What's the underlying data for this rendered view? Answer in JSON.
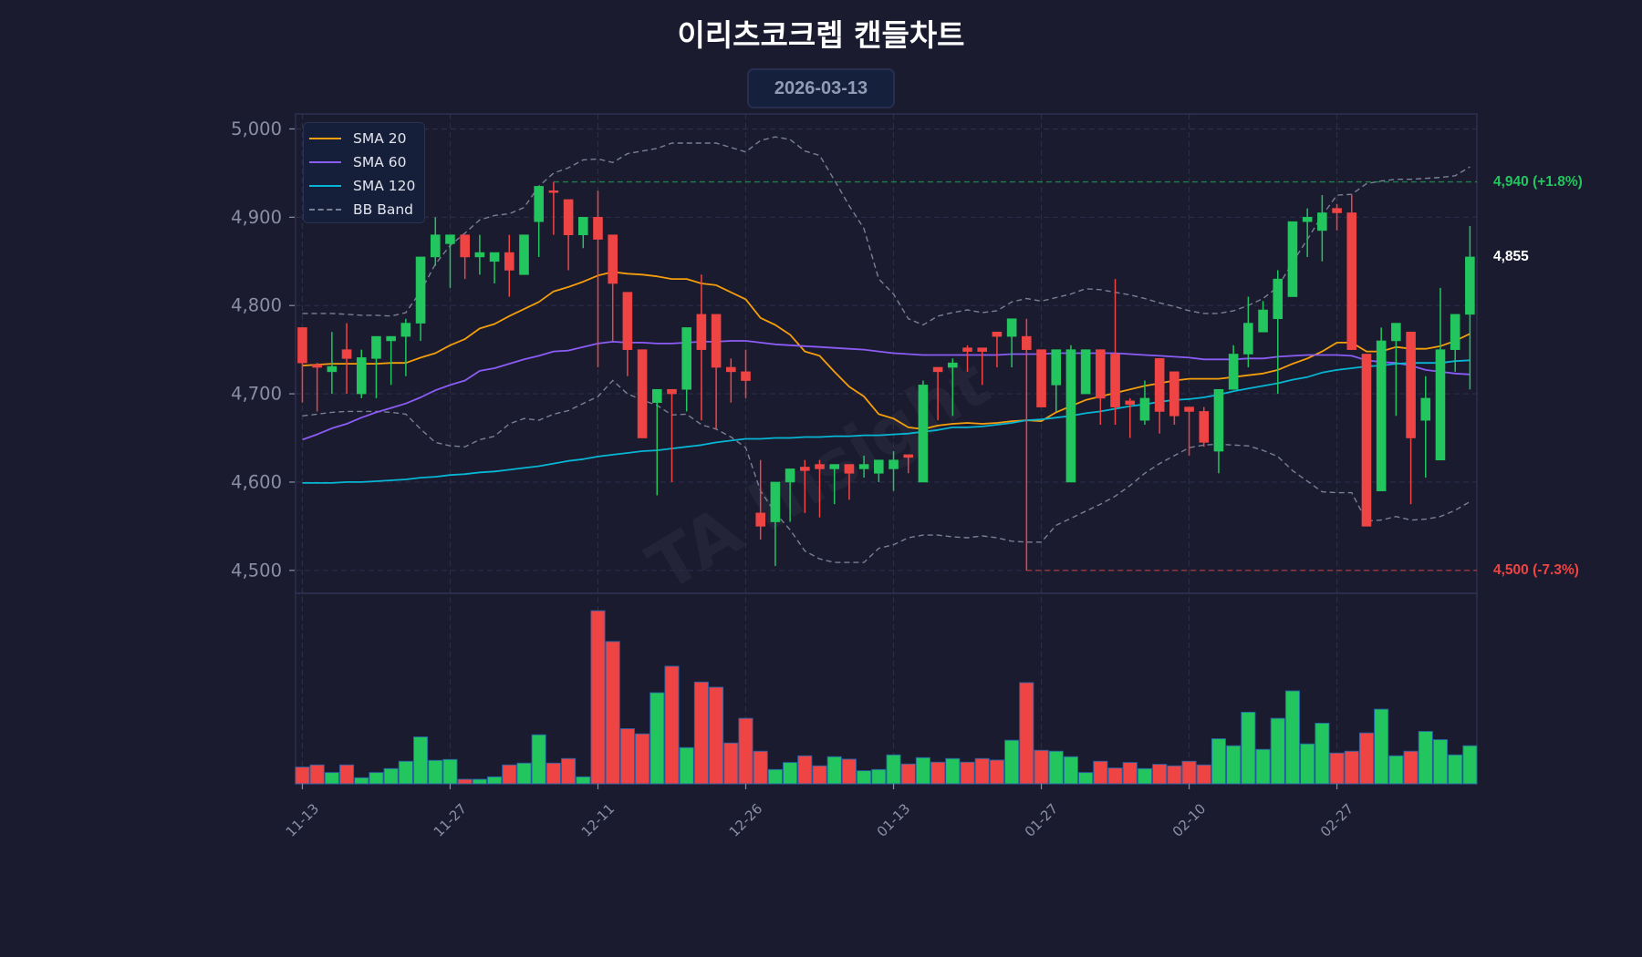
{
  "header": {
    "title": "이리츠코크렙 캔들차트",
    "date": "2026-03-13"
  },
  "legend": {
    "items": [
      {
        "label": "SMA 20",
        "color": "#f59e0b",
        "style": "solid"
      },
      {
        "label": "SMA 60",
        "color": "#8b5cf6",
        "style": "solid"
      },
      {
        "label": "SMA 120",
        "color": "#06b6d4",
        "style": "solid"
      },
      {
        "label": "BB Band",
        "color": "#7b7f93",
        "style": "dashed"
      }
    ]
  },
  "price_labels": {
    "target": {
      "text": "4,940 (+1.8%)",
      "value": 4940,
      "color": "#22c55e",
      "line_start_index": 17
    },
    "current": {
      "text": "4,855",
      "value": 4855,
      "color": "#ffffff"
    },
    "stop": {
      "text": "4,500 (-7.3%)",
      "value": 4500,
      "color": "#ef4444",
      "line_start_index": 49
    }
  },
  "watermark": "TA Insight",
  "colors": {
    "up": "#22c55e",
    "down": "#ef4444",
    "grid": "#2b2d4a",
    "frame": "#2e3050",
    "tick": "#8b8fa3",
    "volume_edge": "#2563a8",
    "bb": "#7b7f93",
    "sma20": "#f59e0b",
    "sma60": "#8b5cf6",
    "sma120": "#06b6d4"
  },
  "chart_data": {
    "type": "candlestick",
    "title": "이리츠코크렙 캔들차트",
    "subtitle": "2026-03-13",
    "xlabel": "",
    "ylabel": "",
    "ylim": [
      4474,
      5017
    ],
    "xlim": [
      -0.46,
      79.47
    ],
    "grid": true,
    "legend_position": "upper left",
    "yticks": [
      4500,
      4600,
      4700,
      4800,
      4900,
      5000
    ],
    "ytick_labels": [
      "4,500",
      "4,600",
      "4,700",
      "4,800",
      "4,900",
      "5,000"
    ],
    "xticks": [
      {
        "index": 0,
        "label": "11-13"
      },
      {
        "index": 10,
        "label": "11-27"
      },
      {
        "index": 20,
        "label": "12-11"
      },
      {
        "index": 30,
        "label": "12-26"
      },
      {
        "index": 40,
        "label": "01-13"
      },
      {
        "index": 50,
        "label": "01-27"
      },
      {
        "index": 60,
        "label": "02-10"
      },
      {
        "index": 70,
        "label": "02-27"
      }
    ],
    "candle_fields": [
      "open",
      "high",
      "low",
      "close"
    ],
    "candles": [
      [
        4775,
        4775,
        4690,
        4735
      ],
      [
        4733,
        4735,
        4680,
        4730
      ],
      [
        4725,
        4770,
        4700,
        4731
      ],
      [
        4750,
        4780,
        4700,
        4740
      ],
      [
        4700,
        4750,
        4695,
        4741
      ],
      [
        4740,
        4765,
        4695,
        4765
      ],
      [
        4760,
        4765,
        4710,
        4765
      ],
      [
        4765,
        4785,
        4720,
        4780
      ],
      [
        4780,
        4855,
        4760,
        4855
      ],
      [
        4855,
        4900,
        4845,
        4880
      ],
      [
        4870,
        4880,
        4820,
        4880
      ],
      [
        4880,
        4880,
        4830,
        4855
      ],
      [
        4855,
        4880,
        4835,
        4860
      ],
      [
        4850,
        4860,
        4825,
        4860
      ],
      [
        4860,
        4880,
        4810,
        4840
      ],
      [
        4835,
        4880,
        4835,
        4880
      ],
      [
        4895,
        4935,
        4855,
        4935
      ],
      [
        4930,
        4940,
        4880,
        4928
      ],
      [
        4920,
        4920,
        4840,
        4880
      ],
      [
        4880,
        4900,
        4865,
        4900
      ],
      [
        4900,
        4930,
        4730,
        4875
      ],
      [
        4880,
        4880,
        4760,
        4825
      ],
      [
        4815,
        4815,
        4720,
        4750
      ],
      [
        4750,
        4750,
        4650,
        4650
      ],
      [
        4690,
        4705,
        4585,
        4705
      ],
      [
        4705,
        4705,
        4600,
        4700
      ],
      [
        4705,
        4775,
        4680,
        4775
      ],
      [
        4790,
        4835,
        4670,
        4750
      ],
      [
        4790,
        4790,
        4660,
        4730
      ],
      [
        4730,
        4740,
        4690,
        4725
      ],
      [
        4725,
        4750,
        4695,
        4715
      ],
      [
        4565,
        4625,
        4535,
        4550
      ],
      [
        4555,
        4600,
        4505,
        4600
      ],
      [
        4600,
        4615,
        4555,
        4615
      ],
      [
        4617,
        4625,
        4565,
        4613
      ],
      [
        4620,
        4625,
        4560,
        4615
      ],
      [
        4615,
        4620,
        4575,
        4620
      ],
      [
        4620,
        4620,
        4580,
        4610
      ],
      [
        4615,
        4630,
        4605,
        4620
      ],
      [
        4610,
        4625,
        4600,
        4625
      ],
      [
        4615,
        4635,
        4590,
        4625
      ],
      [
        4631,
        4631,
        4610,
        4628
      ],
      [
        4600,
        4715,
        4600,
        4710
      ],
      [
        4730,
        4730,
        4670,
        4725
      ],
      [
        4730,
        4740,
        4675,
        4735
      ],
      [
        4752,
        4755,
        4725,
        4748
      ],
      [
        4752,
        4752,
        4710,
        4748
      ],
      [
        4770,
        4770,
        4730,
        4765
      ],
      [
        4765,
        4785,
        4730,
        4785
      ],
      [
        4765,
        4785,
        4500,
        4750
      ],
      [
        4750,
        4750,
        4685,
        4685
      ],
      [
        4710,
        4750,
        4680,
        4750
      ],
      [
        4600,
        4755,
        4600,
        4750
      ],
      [
        4700,
        4750,
        4700,
        4750
      ],
      [
        4750,
        4750,
        4665,
        4695
      ],
      [
        4745,
        4830,
        4665,
        4685
      ],
      [
        4692,
        4695,
        4650,
        4688
      ],
      [
        4670,
        4715,
        4665,
        4695
      ],
      [
        4740,
        4740,
        4655,
        4680
      ],
      [
        4725,
        4725,
        4665,
        4675
      ],
      [
        4685,
        4685,
        4630,
        4680
      ],
      [
        4680,
        4685,
        4640,
        4645
      ],
      [
        4635,
        4705,
        4610,
        4705
      ],
      [
        4705,
        4755,
        4705,
        4745
      ],
      [
        4745,
        4810,
        4730,
        4780
      ],
      [
        4770,
        4805,
        4770,
        4795
      ],
      [
        4785,
        4840,
        4700,
        4830
      ],
      [
        4810,
        4895,
        4810,
        4895
      ],
      [
        4895,
        4910,
        4855,
        4900
      ],
      [
        4885,
        4925,
        4850,
        4905
      ],
      [
        4910,
        4915,
        4885,
        4905
      ],
      [
        4905,
        4925,
        4750,
        4750
      ],
      [
        4745,
        4745,
        4550,
        4550
      ],
      [
        4590,
        4775,
        4590,
        4760
      ],
      [
        4760,
        4780,
        4675,
        4780
      ],
      [
        4770,
        4770,
        4575,
        4650
      ],
      [
        4670,
        4720,
        4605,
        4695
      ],
      [
        4625,
        4820,
        4625,
        4750
      ],
      [
        4750,
        4790,
        4725,
        4790
      ],
      [
        4790,
        4890,
        4705,
        4855
      ]
    ],
    "volume_units": "relative",
    "volume_max": 625,
    "volume": [
      55,
      62,
      37,
      62,
      20,
      37,
      50,
      74,
      154,
      77,
      80,
      15,
      15,
      23,
      62,
      68,
      161,
      68,
      83,
      23,
      568,
      467,
      181,
      164,
      299,
      386,
      119,
      334,
      317,
      134,
      215,
      107,
      47,
      70,
      92,
      59,
      89,
      81,
      43,
      47,
      95,
      65,
      86,
      71,
      83,
      71,
      83,
      78,
      143,
      332,
      110,
      107,
      89,
      37,
      74,
      52,
      70,
      50,
      64,
      59,
      74,
      62,
      148,
      125,
      235,
      113,
      215,
      305,
      131,
      199,
      101,
      107,
      167,
      245,
      92,
      107,
      172,
      145,
      95,
      125
    ],
    "series": [
      {
        "name": "SMA 20",
        "color": "#f59e0b",
        "values": [
          4732,
          4733,
          4734,
          4734,
          4734,
          4734,
          4735,
          4735,
          4741,
          4746,
          4755,
          4762,
          4774,
          4779,
          4788,
          4796,
          4804,
          4816,
          4821,
          4827,
          4834,
          4838,
          4836,
          4835,
          4833,
          4830,
          4830,
          4825,
          4823,
          4815,
          4807,
          4786,
          4778,
          4767,
          4748,
          4743,
          4725,
          4708,
          4697,
          4677,
          4672,
          4662,
          4660,
          4664,
          4666,
          4667,
          4666,
          4667,
          4669,
          4670,
          4669,
          4679,
          4686,
          4693,
          4697,
          4701,
          4705,
          4709,
          4712,
          4715,
          4717,
          4717,
          4717,
          4719,
          4721,
          4723,
          4727,
          4734,
          4740,
          4748,
          4758,
          4758,
          4748,
          4748,
          4753,
          4751,
          4751,
          4754,
          4760,
          4768
        ]
      },
      {
        "name": "SMA 60",
        "color": "#8b5cf6",
        "values": [
          4648,
          4654,
          4661,
          4666,
          4673,
          4679,
          4684,
          4689,
          4696,
          4704,
          4710,
          4715,
          4726,
          4729,
          4734,
          4739,
          4743,
          4748,
          4749,
          4753,
          4757,
          4759,
          4758,
          4758,
          4757,
          4757,
          4758,
          4759,
          4759,
          4760,
          4760,
          4758,
          4756,
          4755,
          4754,
          4753,
          4752,
          4751,
          4750,
          4748,
          4746,
          4745,
          4744,
          4744,
          4744,
          4744,
          4744,
          4744,
          4745,
          4745,
          4745,
          4746,
          4746,
          4746,
          4746,
          4746,
          4745,
          4744,
          4743,
          4742,
          4741,
          4739,
          4739,
          4739,
          4740,
          4740,
          4742,
          4743,
          4744,
          4744,
          4744,
          4743,
          4738,
          4736,
          4735,
          4732,
          4727,
          4725,
          4723,
          4722
        ]
      },
      {
        "name": "SMA 120",
        "color": "#06b6d4",
        "values": [
          4599,
          4599,
          4599,
          4600,
          4600,
          4601,
          4602,
          4603,
          4605,
          4606,
          4608,
          4609,
          4611,
          4612,
          4614,
          4616,
          4618,
          4621,
          4624,
          4626,
          4629,
          4631,
          4633,
          4635,
          4636,
          4638,
          4640,
          4642,
          4645,
          4647,
          4649,
          4649,
          4650,
          4650,
          4651,
          4651,
          4652,
          4652,
          4653,
          4653,
          4654,
          4655,
          4657,
          4659,
          4662,
          4662,
          4663,
          4665,
          4667,
          4670,
          4671,
          4673,
          4675,
          4678,
          4680,
          4683,
          4686,
          4688,
          4691,
          4693,
          4694,
          4696,
          4699,
          4703,
          4706,
          4709,
          4712,
          4716,
          4719,
          4724,
          4727,
          4729,
          4731,
          4732,
          4734,
          4735,
          4735,
          4735,
          4737,
          4738
        ]
      }
    ],
    "bb_upper": [
      4791,
      4791,
      4791,
      4790,
      4789,
      4789,
      4788,
      4792,
      4816,
      4847,
      4868,
      4882,
      4897,
      4902,
      4904,
      4911,
      4935,
      4950,
      4956,
      4965,
      4966,
      4962,
      4972,
      4975,
      4978,
      4984,
      4984,
      4984,
      4984,
      4979,
      4974,
      4987,
      4991,
      4988,
      4975,
      4970,
      4942,
      4913,
      4887,
      4830,
      4813,
      4785,
      4778,
      4788,
      4792,
      4795,
      4792,
      4794,
      4804,
      4808,
      4805,
      4809,
      4813,
      4819,
      4818,
      4815,
      4812,
      4808,
      4803,
      4799,
      4794,
      4791,
      4791,
      4794,
      4800,
      4808,
      4821,
      4849,
      4875,
      4902,
      4925,
      4926,
      4938,
      4941,
      4943,
      4943,
      4944,
      4945,
      4947,
      4957
    ],
    "bb_lower": [
      4675,
      4677,
      4679,
      4680,
      4680,
      4680,
      4679,
      4677,
      4660,
      4645,
      4641,
      4640,
      4648,
      4652,
      4666,
      4672,
      4670,
      4677,
      4681,
      4689,
      4697,
      4715,
      4700,
      4693,
      4687,
      4676,
      4677,
      4665,
      4660,
      4651,
      4639,
      4590,
      4565,
      4546,
      4522,
      4513,
      4509,
      4509,
      4509,
      4525,
      4529,
      4537,
      4540,
      4540,
      4538,
      4537,
      4539,
      4537,
      4533,
      4532,
      4532,
      4551,
      4559,
      4567,
      4575,
      4584,
      4596,
      4610,
      4621,
      4630,
      4639,
      4642,
      4643,
      4642,
      4641,
      4636,
      4629,
      4613,
      4601,
      4589,
      4588,
      4588,
      4556,
      4557,
      4561,
      4557,
      4558,
      4561,
      4568,
      4578
    ],
    "annotations": [
      {
        "type": "hline",
        "value": 4940,
        "label": "4,940 (+1.8%)",
        "color": "#22c55e",
        "style": "dashed"
      },
      {
        "type": "label",
        "value": 4855,
        "label": "4,855",
        "color": "#ffffff"
      },
      {
        "type": "hline",
        "value": 4500,
        "label": "4,500 (-7.3%)",
        "color": "#ef4444",
        "style": "dashed"
      }
    ]
  }
}
